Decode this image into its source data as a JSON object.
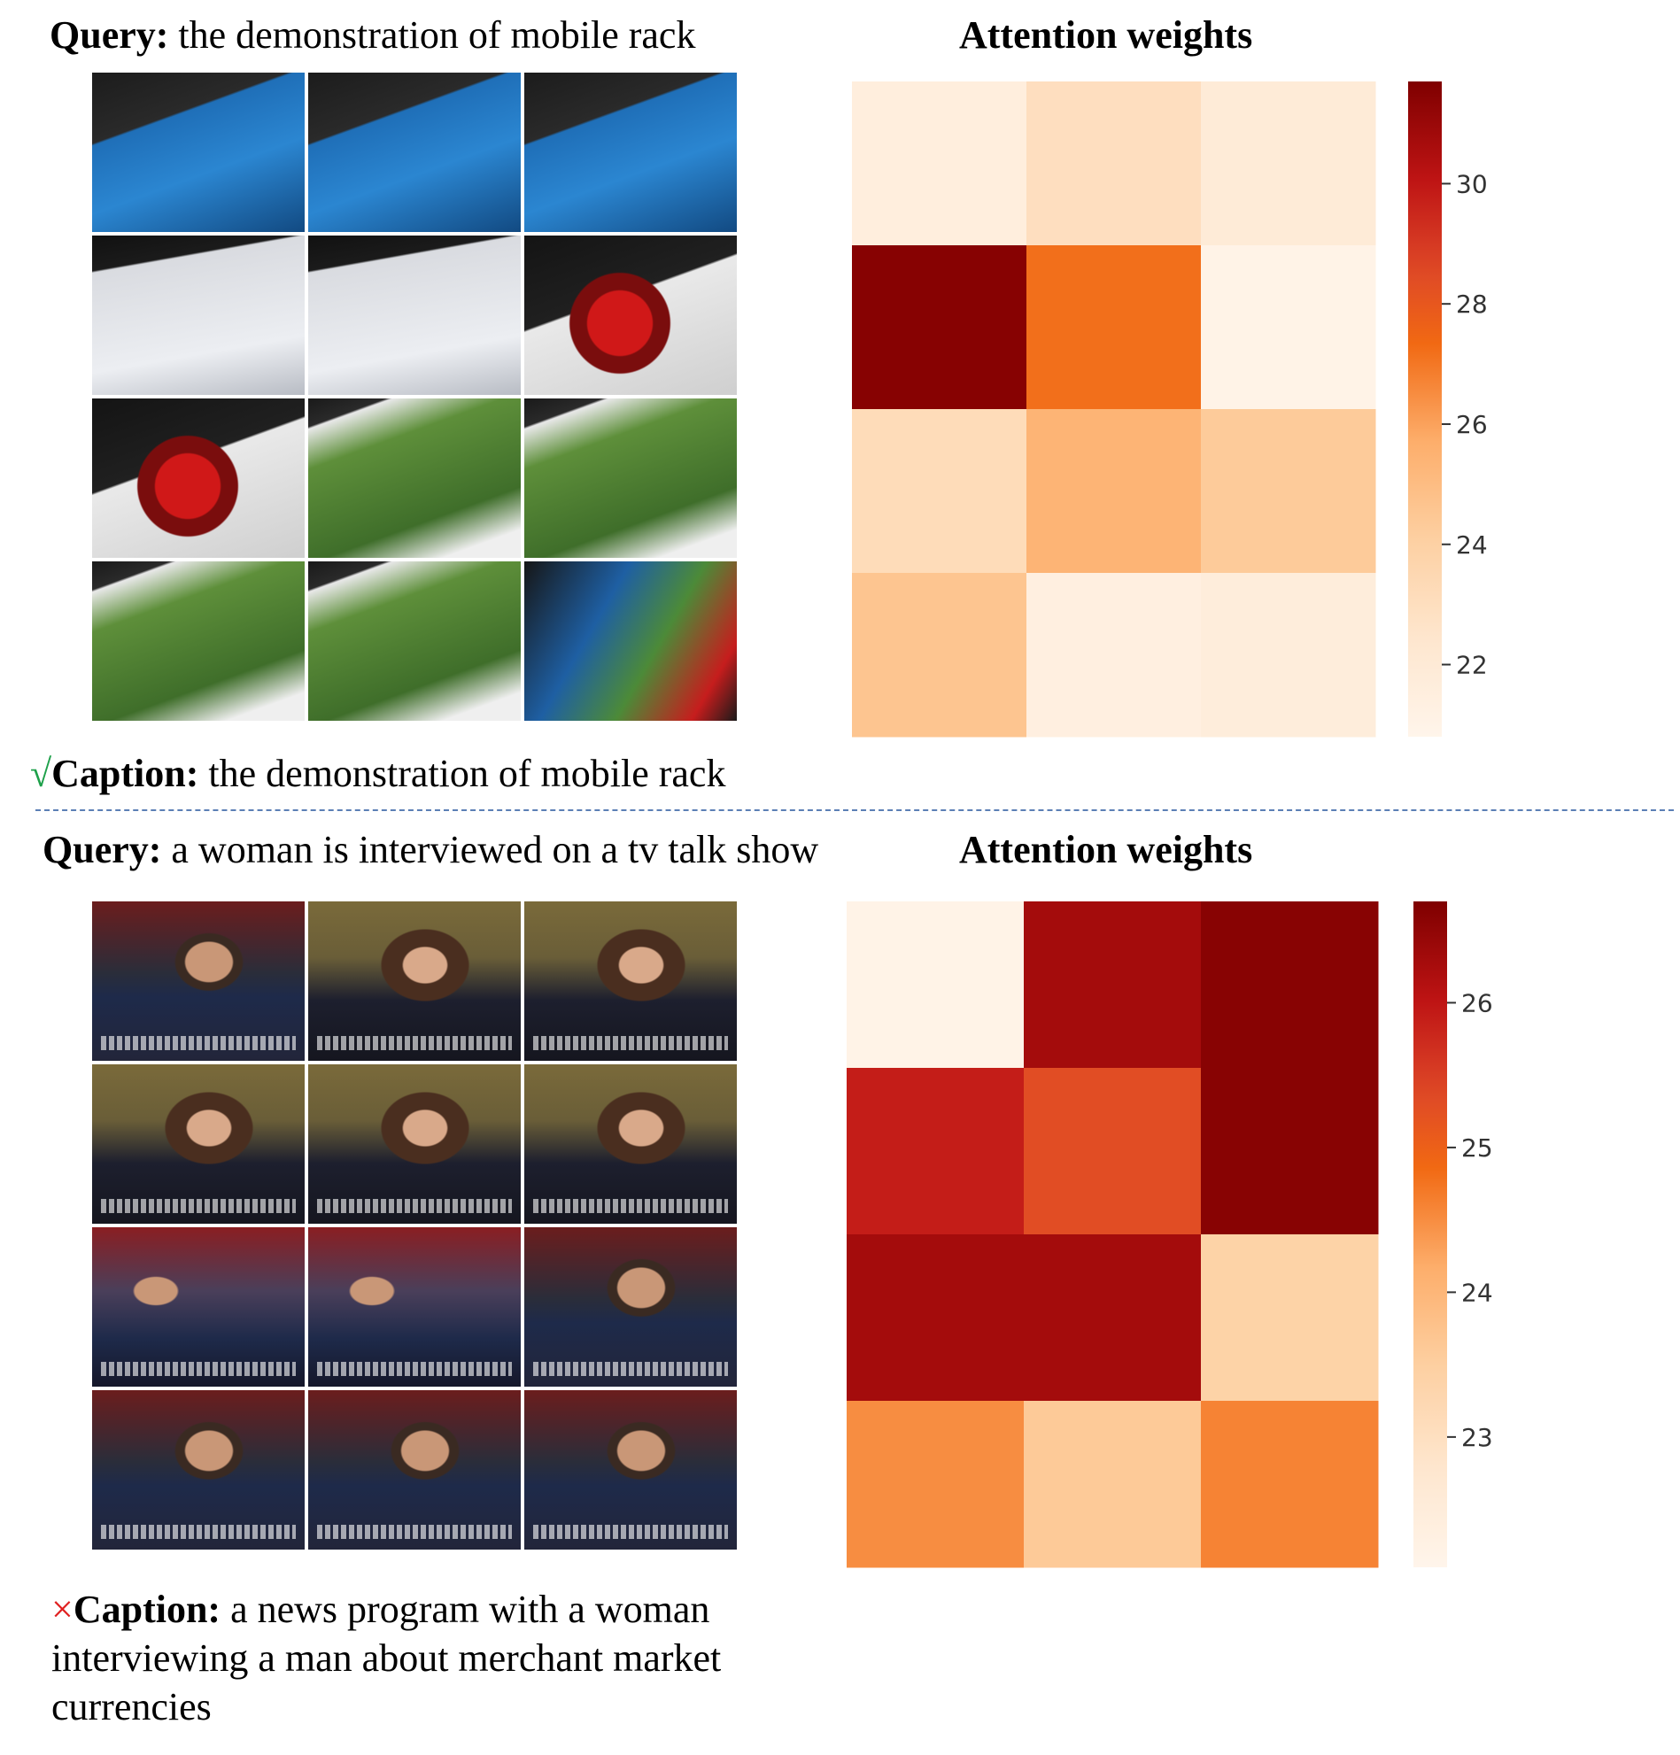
{
  "colors": {
    "check": "#1ea04a",
    "cross": "#e02020",
    "divider": "#5b7fb5"
  },
  "panel_top": {
    "query_label": "Query:",
    "query_text": " the demonstration of mobile rack",
    "caption_mark": "√",
    "caption_label": "Caption:",
    "caption_text": " the demonstration of mobile rack",
    "attention_title": "Attention weights",
    "frames": [
      {
        "name": "motherboard-boxes",
        "theme": "blue-box"
      },
      {
        "name": "supermicro-box",
        "theme": "blue-box"
      },
      {
        "name": "areca-boxes",
        "theme": "blue-box"
      },
      {
        "name": "mobile-rack-box",
        "theme": "white-box"
      },
      {
        "name": "mobile-rack-box-closeup",
        "theme": "white-box"
      },
      {
        "name": "sata-cables-box",
        "theme": "red-cables"
      },
      {
        "name": "sata-cables",
        "theme": "red-cables"
      },
      {
        "name": "raid-controller-box",
        "theme": "green-box"
      },
      {
        "name": "raid-controller-box-2",
        "theme": "green-box"
      },
      {
        "name": "raid-controller-box-3",
        "theme": "green-box"
      },
      {
        "name": "raid-controller-box-4",
        "theme": "green-box"
      },
      {
        "name": "boxes-group",
        "theme": "mixed"
      }
    ]
  },
  "panel_bottom": {
    "query_label": "Query:",
    "query_text": " a woman is interviewed on a tv talk show",
    "caption_mark": "×",
    "caption_label": "Caption:",
    "caption_text": " a news program with a woman interviewing a man about merchant market currencies",
    "attention_title": "Attention weights",
    "frames": [
      {
        "name": "man-studio",
        "theme": "man"
      },
      {
        "name": "woman-anchor",
        "theme": "woman"
      },
      {
        "name": "woman-anchor-2",
        "theme": "woman"
      },
      {
        "name": "woman-anchor-3",
        "theme": "woman"
      },
      {
        "name": "woman-anchor-4",
        "theme": "woman"
      },
      {
        "name": "woman-anchor-5",
        "theme": "woman"
      },
      {
        "name": "bloomberg-interview",
        "theme": "interview"
      },
      {
        "name": "bloomberg-interview-2",
        "theme": "interview"
      },
      {
        "name": "bloomberg-man",
        "theme": "man"
      },
      {
        "name": "man-closeup",
        "theme": "man"
      },
      {
        "name": "man-closeup-2",
        "theme": "man"
      },
      {
        "name": "man-closeup-3",
        "theme": "man"
      }
    ]
  },
  "chart_data": [
    {
      "type": "heatmap",
      "title": "Attention weights",
      "rows": 4,
      "cols": 3,
      "values": [
        [
          21.6,
          23.0,
          21.9
        ],
        [
          31.5,
          27.2,
          21.0
        ],
        [
          23.2,
          25.4,
          24.3
        ],
        [
          24.6,
          21.4,
          21.7
        ]
      ],
      "colorbar": {
        "vmin": 20.8,
        "vmax": 31.7,
        "ticks": [
          22,
          24,
          26,
          28,
          30
        ],
        "colormap": "OrRd"
      }
    },
    {
      "type": "heatmap",
      "title": "Attention weights",
      "rows": 4,
      "cols": 3,
      "values": [
        [
          22.2,
          26.3,
          26.6
        ],
        [
          25.9,
          25.3,
          26.6
        ],
        [
          26.3,
          26.3,
          23.4
        ],
        [
          24.5,
          23.6,
          24.6
        ]
      ],
      "colorbar": {
        "vmin": 22.1,
        "vmax": 26.7,
        "ticks": [
          23,
          24,
          25,
          26
        ],
        "colormap": "OrRd"
      }
    }
  ]
}
